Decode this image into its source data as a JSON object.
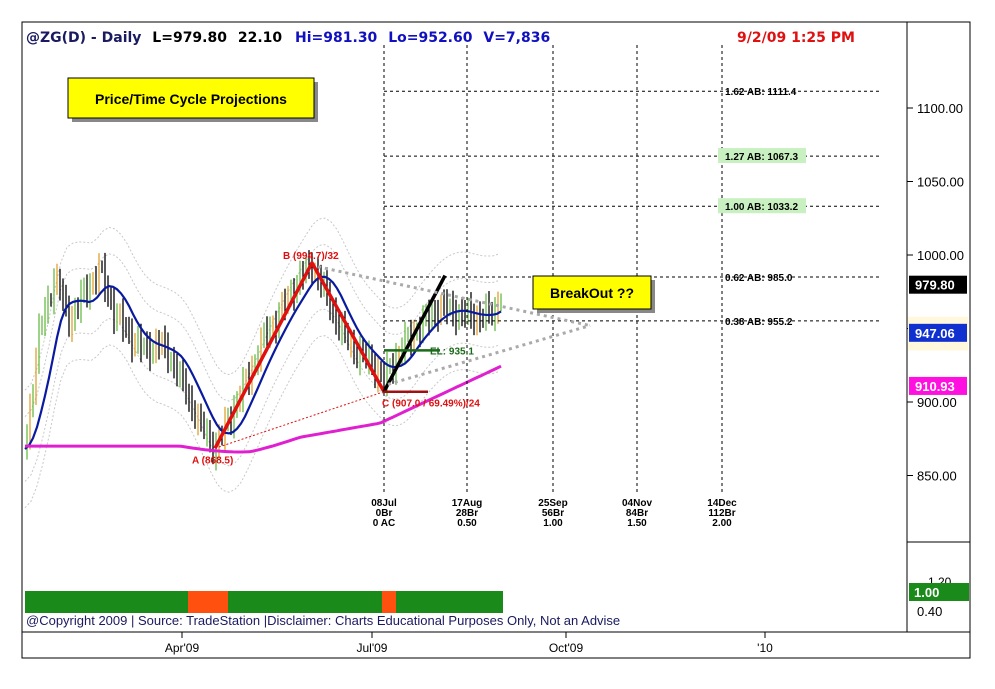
{
  "header": {
    "symbol": "@ZG(D) - Daily",
    "last": "L=979.80",
    "change": "22.10",
    "high": "Hi=981.30",
    "low": "Lo=952.60",
    "volume": "V=7,836",
    "datetime": "9/2/09 1:25 PM"
  },
  "callouts": {
    "title": "Price/Time Cycle Projections",
    "breakout": "BreakOut ??"
  },
  "points": {
    "a": {
      "label": "A (868.5)",
      "price": 868.5
    },
    "b": {
      "label": "B (994.7)/32",
      "price": 994.7
    },
    "c": {
      "label": "C (907.0 / 69.49%)/24",
      "price": 907.0
    },
    "el": {
      "label": "EL: 935.1",
      "price": 935.1
    }
  },
  "fib_levels": [
    {
      "label": "1.62 AB: 1111.4",
      "price": 1111.4,
      "highlight": false
    },
    {
      "label": "1.27 AB: 1067.3",
      "price": 1067.3,
      "highlight": true
    },
    {
      "label": "1.00 AB: 1033.2",
      "price": 1033.2,
      "highlight": true
    },
    {
      "label": "0.62 AB: 985.0",
      "price": 985.0,
      "highlight": false
    },
    {
      "label": "0.38 AB: 955.2",
      "price": 955.2,
      "highlight": false
    }
  ],
  "time_projections": [
    {
      "date": "08Jul",
      "bars": "0Br",
      "ratio": "0 AC"
    },
    {
      "date": "17Aug",
      "bars": "28Br",
      "ratio": "0.50"
    },
    {
      "date": "25Sep",
      "bars": "56Br",
      "ratio": "1.00"
    },
    {
      "date": "04Nov",
      "bars": "84Br",
      "ratio": "1.50"
    },
    {
      "date": "14Dec",
      "bars": "112Br",
      "ratio": "2.00"
    }
  ],
  "price_axis": {
    "ticks": [
      "1100.00",
      "1050.00",
      "1000.00",
      "950.00",
      "900.00",
      "850.00"
    ],
    "tick_values": [
      1100,
      1050,
      1000,
      950,
      900,
      850
    ],
    "last_price": "979.80",
    "ma_blue": "947.06",
    "ma_magenta": "910.93"
  },
  "indicator": {
    "ticks": [
      "1.20",
      "0.40"
    ],
    "value": "1.00"
  },
  "x_axis": {
    "labels": [
      "Apr'09",
      "Jul'09",
      "Oct'09",
      "'10"
    ]
  },
  "footer": {
    "copyright": "@Copyright 2009 | Source: TradeStation |Disclaimer: Charts Educational Purposes Only, Not an Advise"
  },
  "colors": {
    "up_bar": "#66bb44",
    "alt_bar": "#e0a030",
    "down_bar": "#000000",
    "ma_blue": "#0a1aa0",
    "ma_magenta": "#e020d0",
    "zigzag": "#e01010",
    "projection": "#000000",
    "callout_bg": "#ffff00",
    "indicator_green": "#1a8a1a",
    "indicator_orange": "#ff5010",
    "label_red": "#e01010"
  },
  "chart_data": {
    "type": "line",
    "title": "@ZG(D) - Daily",
    "xlabel": "",
    "ylabel": "",
    "ylim": [
      808,
      1140
    ],
    "x": [
      "Apr'09",
      "Jul'09",
      "Oct'09",
      "'10"
    ],
    "series": [
      {
        "name": "A-B-C zigzag",
        "points": [
          {
            "label": "A",
            "value": 868.5
          },
          {
            "label": "B",
            "value": 994.7
          },
          {
            "label": "C",
            "value": 907.0
          }
        ]
      }
    ],
    "levels": [
      1111.4,
      1067.3,
      1033.2,
      985.0,
      955.2
    ],
    "last": 979.8
  }
}
